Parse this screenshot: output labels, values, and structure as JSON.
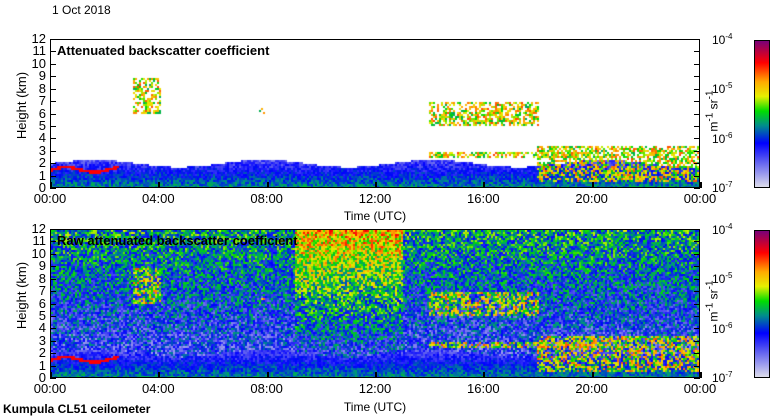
{
  "date_label": "1 Oct 2018",
  "footer": "Kumpula CL51 ceilometer",
  "chart_data": [
    {
      "type": "heatmap",
      "title": "Attenuated backscatter coefficient",
      "xlabel": "Time (UTC)",
      "ylabel": "Height (km)",
      "x_ticks": [
        "00:00",
        "04:00",
        "08:00",
        "12:00",
        "16:00",
        "20:00",
        "00:00"
      ],
      "y_ticks": [
        "0",
        "1",
        "2",
        "3",
        "4",
        "5",
        "6",
        "7",
        "8",
        "9",
        "10",
        "11",
        "12"
      ],
      "xlim": [
        0,
        24
      ],
      "ylim": [
        0,
        12
      ],
      "colorbar": {
        "unit": "m-1 sr-1",
        "unit_base1": "m",
        "unit_exp1": "-1",
        "unit_base2": " sr",
        "unit_exp2": "-1",
        "scale": "log",
        "range": [
          1e-07,
          0.0001
        ],
        "ticks": [
          {
            "base": "10",
            "exp": "-4"
          },
          {
            "base": "10",
            "exp": "-5"
          },
          {
            "base": "10",
            "exp": "-6"
          },
          {
            "base": "10",
            "exp": "-7"
          }
        ]
      },
      "features": [
        {
          "kind": "boundary layer",
          "t": [
            0,
            24
          ],
          "z": [
            0,
            2
          ]
        },
        {
          "kind": "cloud",
          "t": [
            3,
            4
          ],
          "z": [
            6,
            9
          ]
        },
        {
          "kind": "cloud",
          "t": [
            7.7,
            7.9
          ],
          "z": [
            6,
            6.5
          ]
        },
        {
          "kind": "cloud",
          "t": [
            14,
            18
          ],
          "z": [
            5,
            7
          ]
        },
        {
          "kind": "cloud layer",
          "t": [
            14,
            20
          ],
          "z": [
            2.5,
            3
          ]
        },
        {
          "kind": "low cloud",
          "t": [
            18,
            24
          ],
          "z": [
            0.5,
            3.5
          ]
        }
      ]
    },
    {
      "type": "heatmap",
      "title": "Raw attenuated backscatter coefficient",
      "xlabel": "Time (UTC)",
      "ylabel": "Height (km)",
      "x_ticks": [
        "00:00",
        "04:00",
        "08:00",
        "12:00",
        "16:00",
        "20:00",
        "00:00"
      ],
      "y_ticks": [
        "0",
        "1",
        "2",
        "3",
        "4",
        "5",
        "6",
        "7",
        "8",
        "9",
        "10",
        "11",
        "12"
      ],
      "xlim": [
        0,
        24
      ],
      "ylim": [
        0,
        12
      ],
      "colorbar": {
        "unit": "m-1 sr-1",
        "unit_base1": "m",
        "unit_exp1": "-1",
        "unit_base2": " sr",
        "unit_exp2": "-1",
        "scale": "log",
        "range": [
          1e-07,
          0.0001
        ],
        "ticks": [
          {
            "base": "10",
            "exp": "-4"
          },
          {
            "base": "10",
            "exp": "-5"
          },
          {
            "base": "10",
            "exp": "-6"
          },
          {
            "base": "10",
            "exp": "-7"
          }
        ]
      }
    }
  ]
}
